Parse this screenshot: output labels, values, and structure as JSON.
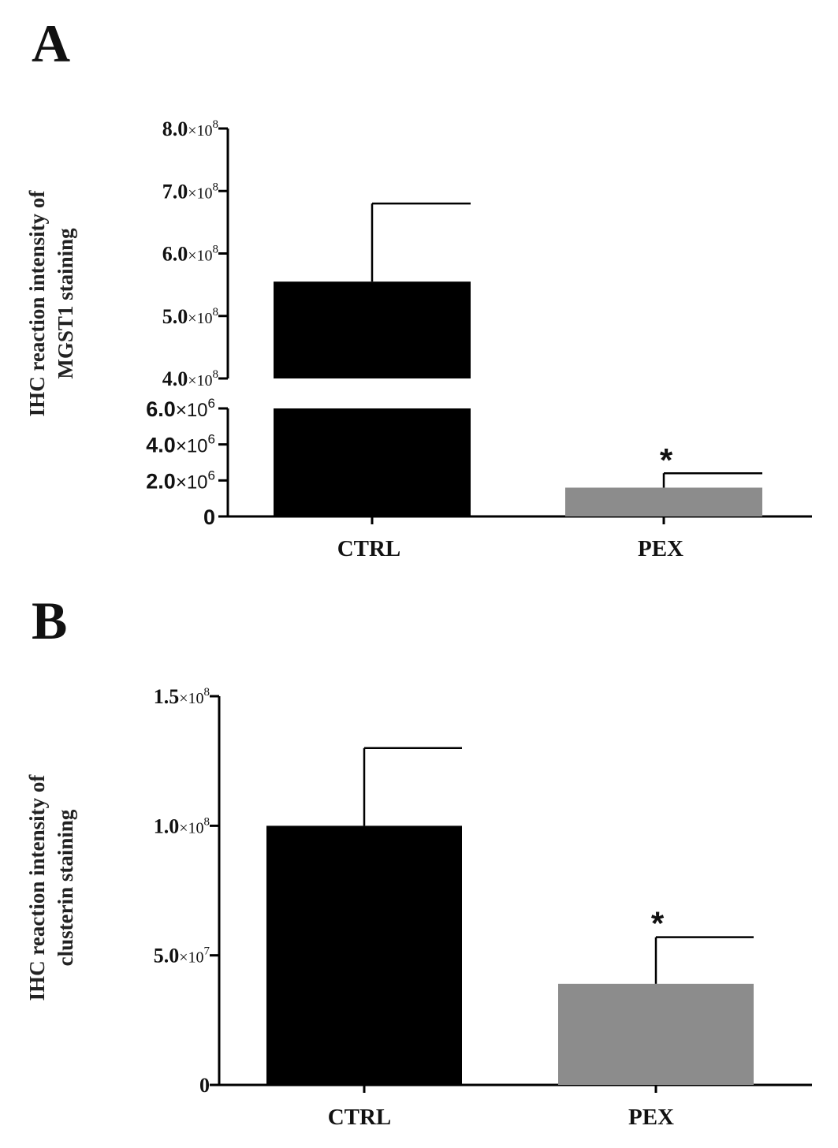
{
  "chart_data": [
    {
      "type": "bar",
      "panel_label": "A",
      "ylabel_lines": [
        "IHC reaction intensity of",
        "MGST1 staining"
      ],
      "categories": [
        "CTRL",
        "PEX"
      ],
      "values": [
        555000000,
        1600000
      ],
      "errors": [
        125000000,
        800000
      ],
      "significance": [
        "",
        "*"
      ],
      "broken_axis": true,
      "lower_segment": {
        "ylim": [
          0,
          6000000
        ],
        "ticks": [
          {
            "mant": "0",
            "exp": ""
          },
          {
            "mant": "2.0",
            "exp": "6"
          },
          {
            "mant": "4.0",
            "exp": "6"
          },
          {
            "mant": "6.0",
            "exp": "6"
          }
        ]
      },
      "upper_segment": {
        "ylim": [
          400000000,
          800000000
        ],
        "ticks": [
          {
            "mant": "4.0",
            "exp": "8"
          },
          {
            "mant": "5.0",
            "exp": "8"
          },
          {
            "mant": "6.0",
            "exp": "8"
          },
          {
            "mant": "7.0",
            "exp": "8"
          },
          {
            "mant": "8.0",
            "exp": "8"
          }
        ]
      },
      "colors": [
        "#000000",
        "#8c8c8c"
      ],
      "grid": false
    },
    {
      "type": "bar",
      "panel_label": "B",
      "ylabel_lines": [
        "IHC reaction intensity of",
        "clusterin staining"
      ],
      "categories": [
        "CTRL",
        "PEX"
      ],
      "values": [
        100000000,
        39000000
      ],
      "errors": [
        30000000,
        18000000
      ],
      "significance": [
        "",
        "*"
      ],
      "ylim": [
        0,
        150000000
      ],
      "ticks": [
        {
          "mant": "0",
          "exp": ""
        },
        {
          "mant": "5.0",
          "exp": "7"
        },
        {
          "mant": "1.0",
          "exp": "8"
        },
        {
          "mant": "1.5",
          "exp": "8"
        }
      ],
      "colors": [
        "#000000",
        "#8c8c8c"
      ],
      "grid": false
    }
  ]
}
